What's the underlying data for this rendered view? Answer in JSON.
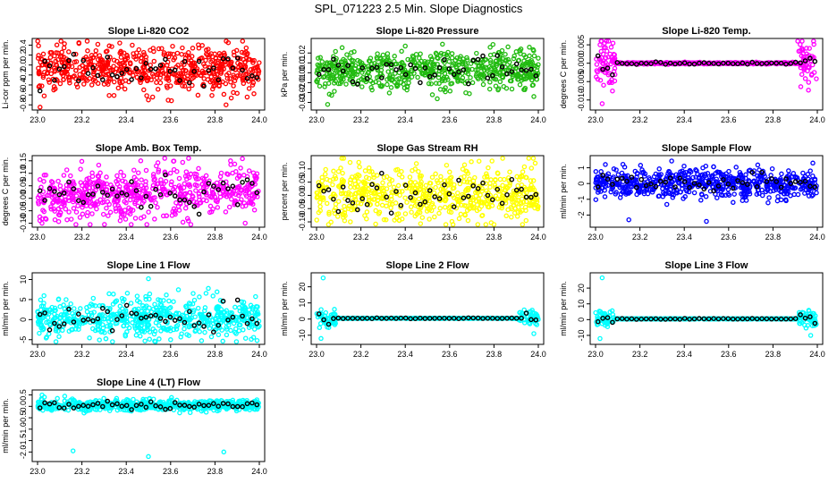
{
  "page_title": "SPL_071223  2.5 Min. Slope Diagnostics",
  "xaxis": {
    "ticks": [
      23.0,
      23.2,
      23.4,
      23.6,
      23.8,
      24.0
    ],
    "labels": [
      "23.0",
      "23.2",
      "23.4",
      "23.6",
      "23.8",
      "24.0"
    ],
    "xlim": [
      23.0,
      24.0
    ]
  },
  "series_colors": {
    "red": "#ff0000",
    "green": "#22bb11",
    "magenta": "#ff00ff",
    "yellow": "#ffff00",
    "blue": "#0000ff",
    "cyan": "#00ffff",
    "black": "#000000"
  },
  "chart_data": [
    {
      "type": "scatter",
      "title": "Slope Li-820 CO2",
      "ylabel": "Li-cor ppm per min.",
      "color": "#ff0000",
      "ylim": [
        -0.85,
        0.48
      ],
      "yticks": [
        -0.8,
        -0.6,
        -0.4,
        -0.2,
        0.0,
        0.2,
        0.4
      ],
      "ytick_labels": [
        "-0.8",
        "-0.6",
        "-0.4",
        "-0.2",
        "0.0",
        "0.2",
        "0.4"
      ],
      "pattern": "noise",
      "center": -0.08,
      "spread": 0.22,
      "outliers": [
        [
          23.03,
          -0.62
        ],
        [
          23.85,
          -0.8
        ],
        [
          23.5,
          -0.7
        ]
      ]
    },
    {
      "type": "scatter",
      "title": "Slope Li-820 Pressure",
      "ylabel": "kPa per min.",
      "color": "#22bb11",
      "ylim": [
        -0.035,
        0.032
      ],
      "yticks": [
        -0.03,
        -0.02,
        -0.01,
        0.0,
        0.01,
        0.02
      ],
      "ytick_labels": [
        "-0.03",
        "-0.02",
        "-0.01",
        "0.00",
        "0.01",
        "0.02"
      ],
      "pattern": "noise",
      "center": 0.002,
      "spread": 0.01,
      "outliers": [
        [
          23.05,
          -0.032
        ],
        [
          23.98,
          -0.024
        ],
        [
          23.4,
          0.027
        ]
      ]
    },
    {
      "type": "scatter",
      "title": "Slope Li-820 Temp.",
      "ylabel": "degrees C per min.",
      "color": "#ff00ff",
      "ylim": [
        -0.012,
        0.006
      ],
      "yticks": [
        -0.01,
        -0.005,
        0.0,
        0.005
      ],
      "ytick_labels": [
        "-0.010",
        "-0.005",
        "0.000",
        "0.005"
      ],
      "pattern": "edges",
      "center": 0.0,
      "spread": 0.0035,
      "outliers": [
        [
          23.03,
          -0.011
        ],
        [
          23.02,
          0.005
        ]
      ]
    },
    {
      "type": "scatter",
      "title": "Slope Amb. Box Temp.",
      "ylabel": "degrees C per min.",
      "color": "#ff00ff",
      "ylim": [
        -0.105,
        0.16
      ],
      "yticks": [
        -0.1,
        -0.05,
        0.0,
        0.05,
        0.1,
        0.15
      ],
      "ytick_labels": [
        "-0.10",
        "-0.05",
        "0.00",
        "0.05",
        "0.10",
        "0.15"
      ],
      "pattern": "trend",
      "center": 0.02,
      "spread": 0.05,
      "outliers": [
        [
          23.87,
          0.15
        ],
        [
          23.02,
          -0.1
        ]
      ]
    },
    {
      "type": "scatter",
      "title": "Slope Gas Stream RH",
      "ylabel": "percent per min.",
      "color": "#ffff00",
      "ylim": [
        -0.11,
        0.14
      ],
      "yticks": [
        -0.1,
        -0.05,
        0.0,
        0.05,
        0.1
      ],
      "ytick_labels": [
        "-0.10",
        "-0.05",
        "0.00",
        "0.05",
        "0.10"
      ],
      "pattern": "noise",
      "center": 0.005,
      "spread": 0.05,
      "outliers": [
        [
          23.8,
          -0.11
        ],
        [
          23.45,
          0.12
        ]
      ]
    },
    {
      "type": "scatter",
      "title": "Slope Sample Flow",
      "ylabel": "ml/min per min.",
      "color": "#0000ff",
      "ylim": [
        -2.6,
        1.6
      ],
      "yticks": [
        -2,
        -1,
        0,
        1
      ],
      "ytick_labels": [
        "-2",
        "-1",
        "0",
        "1"
      ],
      "pattern": "noise",
      "center": 0.0,
      "spread": 0.45,
      "outliers": [
        [
          23.15,
          -2.3
        ],
        [
          23.5,
          -2.4
        ],
        [
          23.82,
          -1.1
        ],
        [
          23.62,
          -1.2
        ],
        [
          23.98,
          1.3
        ]
      ]
    },
    {
      "type": "scatter",
      "title": "Slope Line 1 Flow",
      "ylabel": "ml/min per min.",
      "color": "#00ffff",
      "ylim": [
        -5.5,
        11
      ],
      "yticks": [
        -5,
        0,
        5,
        10
      ],
      "ytick_labels": [
        "-5",
        "0",
        "5",
        "10"
      ],
      "pattern": "noise",
      "center": 0.3,
      "spread": 2.4,
      "outliers": [
        [
          23.5,
          10.2
        ],
        [
          23.77,
          7.8
        ],
        [
          23.6,
          -5.0
        ]
      ]
    },
    {
      "type": "scatter",
      "title": "Slope Line 2 Flow",
      "ylabel": "ml/min per min.",
      "color": "#00ffff",
      "ylim": [
        -14,
        27
      ],
      "yticks": [
        -10,
        0,
        10,
        20
      ],
      "ytick_labels": [
        "-10",
        "0",
        "10",
        "20"
      ],
      "pattern": "edges",
      "center": 0.5,
      "spread": 2.5,
      "outliers": [
        [
          23.03,
          25.5
        ],
        [
          23.02,
          -12
        ],
        [
          23.98,
          -9
        ]
      ]
    },
    {
      "type": "scatter",
      "title": "Slope Line 3 Flow",
      "ylabel": "ml/min per min.",
      "color": "#00ffff",
      "ylim": [
        -14,
        28
      ],
      "yticks": [
        -10,
        0,
        10,
        20
      ],
      "ytick_labels": [
        "-10",
        "0",
        "10",
        "20"
      ],
      "pattern": "edges",
      "center": 0.5,
      "spread": 2.5,
      "outliers": [
        [
          23.03,
          26.5
        ],
        [
          23.02,
          -12
        ],
        [
          23.97,
          -10
        ]
      ]
    },
    {
      "type": "scatter",
      "title": "Slope Line 4 (LT) Flow",
      "ylabel": "ml/min per min.",
      "color": "#00ffff",
      "ylim": [
        -2.3,
        0.6
      ],
      "yticks": [
        -2.0,
        -1.5,
        -1.0,
        -0.5,
        0.0,
        0.5
      ],
      "ytick_labels": [
        "-2.0",
        "-1.5",
        "-1.0",
        "-0.5",
        "0.0",
        "0.5"
      ],
      "pattern": "noise",
      "center": 0.05,
      "spread": 0.12,
      "outliers": [
        [
          23.16,
          -1.95
        ],
        [
          23.5,
          -2.2
        ],
        [
          23.84,
          -2.0
        ],
        [
          23.02,
          0.5
        ]
      ]
    }
  ]
}
